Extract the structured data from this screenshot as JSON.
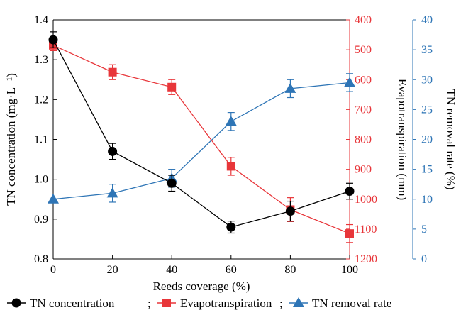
{
  "chart_data": {
    "type": "line",
    "title": "",
    "xlabel": "Reeds coverage (%)",
    "x": [
      0,
      20,
      40,
      60,
      80,
      100
    ],
    "xlim": [
      0,
      100
    ],
    "x_ticks": [
      "0",
      "20",
      "40",
      "60",
      "80",
      "100"
    ],
    "axes": {
      "left": {
        "label": "TN concentration (mg·L⁻¹)",
        "ylim": [
          0.8,
          1.4
        ],
        "ticks": [
          "0.8",
          "0.9",
          "1.0",
          "1.1",
          "1.2",
          "1.3",
          "1.4"
        ],
        "color": "#000000"
      },
      "right1": {
        "label": "Evapotranspiration (mm)",
        "ylim": [
          400,
          1200
        ],
        "inverted": true,
        "ticks": [
          "400",
          "500",
          "600",
          "700",
          "800",
          "900",
          "1000",
          "1100",
          "1200"
        ],
        "color": "#e8363a"
      },
      "right2": {
        "label": "TN removal rate (%)",
        "ylim": [
          0,
          40
        ],
        "ticks": [
          "0",
          "5",
          "10",
          "15",
          "20",
          "25",
          "30",
          "35",
          "40"
        ],
        "color": "#2e75b6"
      }
    },
    "series": [
      {
        "name": "TN concentration",
        "axis": "left",
        "color": "#000000",
        "marker": "circle",
        "values": [
          1.35,
          1.07,
          0.99,
          0.88,
          0.92,
          0.97
        ],
        "errors": [
          0.02,
          0.02,
          0.02,
          0.015,
          0.025,
          0.02
        ]
      },
      {
        "name": "Evapotranspiration",
        "axis": "right1",
        "color": "#e8363a",
        "marker": "square",
        "values": [
          485,
          575,
          625,
          890,
          1035,
          1115
        ],
        "errors": [
          18,
          25,
          25,
          30,
          40,
          30
        ]
      },
      {
        "name": "TN removal rate",
        "axis": "right2",
        "color": "#2e75b6",
        "marker": "triangle",
        "values": [
          10,
          11,
          13.5,
          23,
          28.5,
          29.5
        ],
        "errors": [
          0,
          1.5,
          1.5,
          1.5,
          1.5,
          1.5
        ]
      }
    ],
    "legend": {
      "placement": "bottom",
      "separator": ";"
    }
  }
}
